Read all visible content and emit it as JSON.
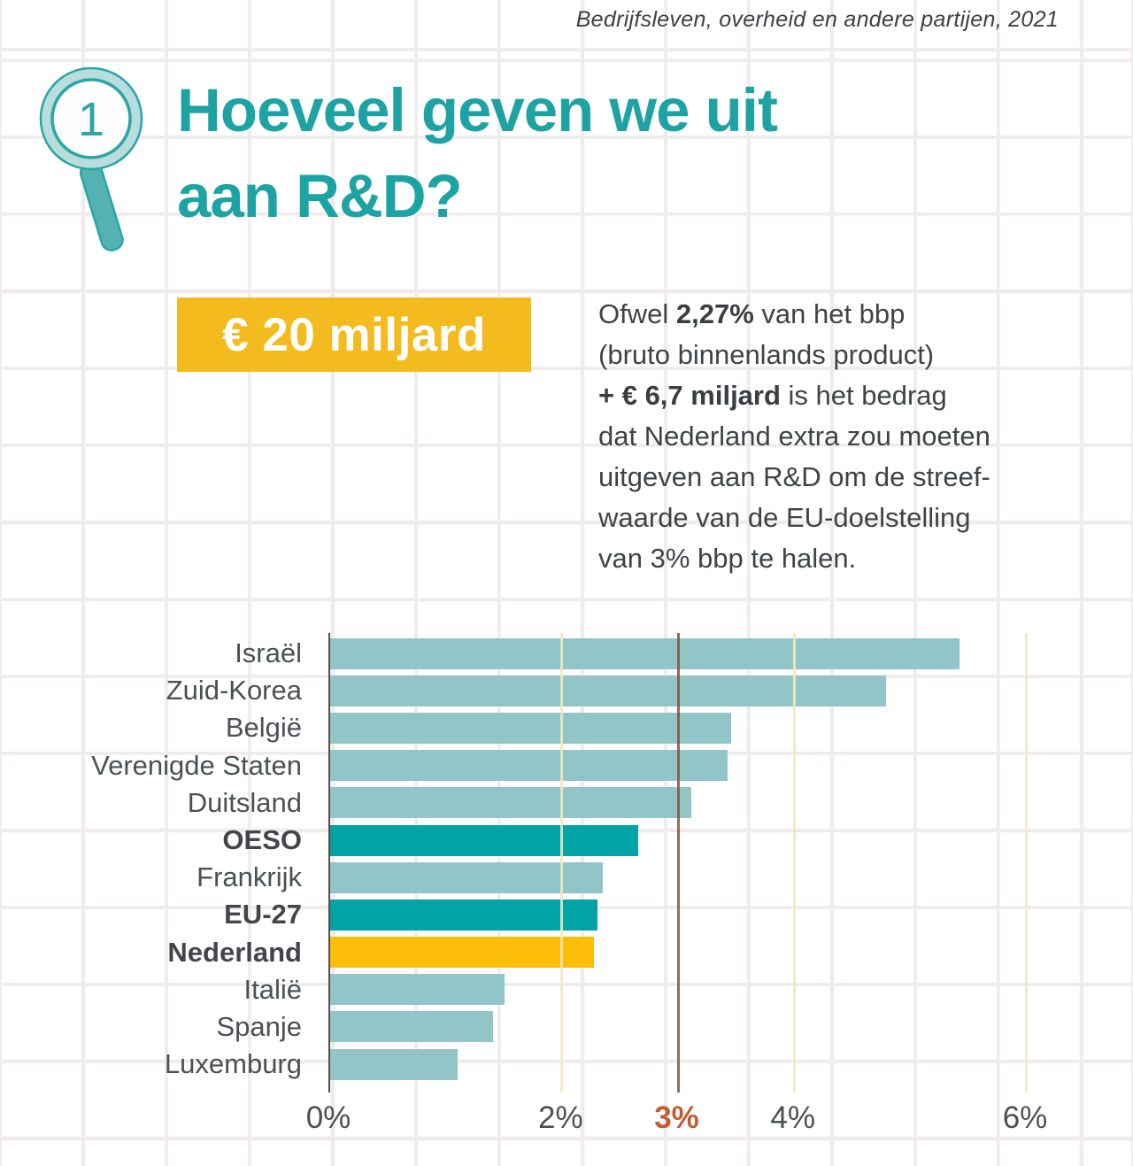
{
  "header": {
    "source_note": "Bedrijfsleven, overheid en andere partijen, 2021"
  },
  "section": {
    "number": "1",
    "title_line1": "Hoeveel geven we uit",
    "title_line2": "aan R&D?"
  },
  "badge": {
    "amount": "€ 20 miljard",
    "bg_color": "#f3bb1d",
    "text_color": "#ffffff"
  },
  "intro": {
    "lines": [
      {
        "pre": "Ofwel ",
        "bold": "2,27%",
        "post": " van het bbp"
      },
      {
        "pre": "(bruto binnenlands product)"
      },
      {
        "bold": "+ € 6,7 miljard",
        "post": " is het bedrag"
      },
      {
        "pre": "dat Nederland extra zou moeten"
      },
      {
        "pre": "uitgeven aan R&D om de streef-"
      },
      {
        "pre": "waarde van de EU-doelstelling"
      },
      {
        "pre": "van 3% bbp te halen."
      }
    ]
  },
  "chart_data": {
    "type": "bar",
    "orientation": "horizontal",
    "unit": "% van het bbp",
    "categories": [
      "Israël",
      "Zuid-Korea",
      "België",
      "Verenigde Staten",
      "Duitsland",
      "OESO",
      "Frankrijk",
      "EU-27",
      "Nederland",
      "Italië",
      "Spanje",
      "Luxemburg"
    ],
    "values": [
      5.42,
      4.79,
      3.45,
      3.42,
      3.11,
      2.65,
      2.35,
      2.3,
      2.27,
      1.5,
      1.4,
      1.1
    ],
    "bar_colors": [
      "#92c5c7",
      "#92c5c7",
      "#92c5c7",
      "#92c5c7",
      "#92c5c7",
      "#00a3a6",
      "#92c5c7",
      "#00a3a6",
      "#fbbd08",
      "#92c5c7",
      "#92c5c7",
      "#92c5c7"
    ],
    "bold_categories": [
      "OESO",
      "EU-27",
      "Nederland"
    ],
    "xlim": [
      0,
      6
    ],
    "x_ticks": [
      {
        "label": "0%",
        "value": 0
      },
      {
        "label": "2%",
        "value": 2
      },
      {
        "label": "3%",
        "value": 3,
        "highlight": true
      },
      {
        "label": "4%",
        "value": 4
      },
      {
        "label": "6%",
        "value": 6
      }
    ],
    "reference_line": {
      "value": 3,
      "label": "3%",
      "meaning": "EU-doelstelling 3% van het bbp",
      "color": "#80543a"
    },
    "legend": "geen",
    "colors": {
      "default_bar": "#92c5c7",
      "oeso_eu_bar": "#00a3a6",
      "nederland_bar": "#fbbd08",
      "pale_gridline": "#f3e8be",
      "axis_line": "#5a4c42",
      "tick_label": "#4b5055",
      "tick_highlight": "#c25c31"
    }
  }
}
